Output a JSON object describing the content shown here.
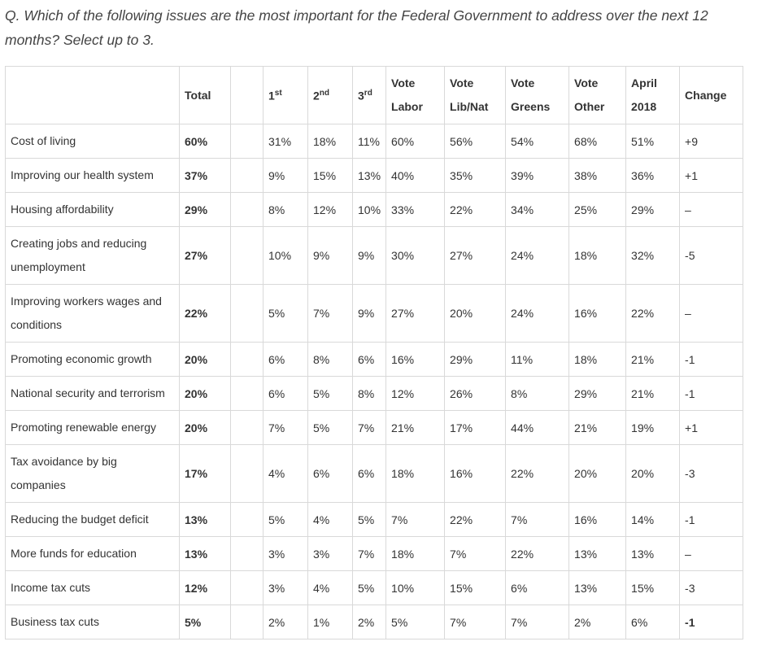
{
  "question": "Q. Which of the following issues are the most important for the Federal Government to address over the next 12 months? Select up to 3.",
  "headers": {
    "issue": "",
    "total": "Total",
    "first": {
      "num": "1",
      "suffix": "st"
    },
    "second": {
      "num": "2",
      "suffix": "nd"
    },
    "third": {
      "num": "3",
      "suffix": "rd"
    },
    "vote_labor": {
      "line1": "Vote",
      "line2": "Labor"
    },
    "vote_libnat": {
      "line1": "Vote",
      "line2": "Lib/Nat"
    },
    "vote_greens": {
      "line1": "Vote",
      "line2": "Greens"
    },
    "vote_other": {
      "line1": "Vote",
      "line2": "Other"
    },
    "april_2018": {
      "line1": "April",
      "line2": "2018"
    },
    "change": "Change"
  },
  "rows": [
    {
      "issue": "Cost of living",
      "total": "60%",
      "first": "31%",
      "second": "18%",
      "third": "11%",
      "labor": "60%",
      "libnat": "56%",
      "greens": "54%",
      "other": "68%",
      "april": "51%",
      "change": "+9"
    },
    {
      "issue": "Improving our health system",
      "total": "37%",
      "first": "9%",
      "second": "15%",
      "third": "13%",
      "labor": "40%",
      "libnat": "35%",
      "greens": "39%",
      "other": "38%",
      "april": "36%",
      "change": "+1"
    },
    {
      "issue": "Housing affordability",
      "total": "29%",
      "first": "8%",
      "second": "12%",
      "third": "10%",
      "labor": "33%",
      "libnat": "22%",
      "greens": "34%",
      "other": "25%",
      "april": "29%",
      "change": "–"
    },
    {
      "issue": "Creating jobs and reducing unemployment",
      "total": "27%",
      "first": "10%",
      "second": "9%",
      "third": "9%",
      "labor": "30%",
      "libnat": "27%",
      "greens": "24%",
      "other": "18%",
      "april": "32%",
      "change": "-5"
    },
    {
      "issue": "Improving workers wages and conditions",
      "total": "22%",
      "first": "5%",
      "second": "7%",
      "third": "9%",
      "labor": "27%",
      "libnat": "20%",
      "greens": "24%",
      "other": "16%",
      "april": "22%",
      "change": "–"
    },
    {
      "issue": "Promoting economic growth",
      "total": "20%",
      "first": "6%",
      "second": "8%",
      "third": "6%",
      "labor": "16%",
      "libnat": "29%",
      "greens": "11%",
      "other": "18%",
      "april": "21%",
      "change": "-1"
    },
    {
      "issue": "National security and terrorism",
      "total": "20%",
      "first": "6%",
      "second": "5%",
      "third": "8%",
      "labor": "12%",
      "libnat": "26%",
      "greens": "8%",
      "other": "29%",
      "april": "21%",
      "change": "-1"
    },
    {
      "issue": "Promoting renewable energy",
      "total": "20%",
      "first": "7%",
      "second": "5%",
      "third": "7%",
      "labor": "21%",
      "libnat": "17%",
      "greens": "44%",
      "other": "21%",
      "april": "19%",
      "change": "+1"
    },
    {
      "issue": "Tax avoidance by big companies",
      "total": "17%",
      "first": "4%",
      "second": "6%",
      "third": "6%",
      "labor": "18%",
      "libnat": "16%",
      "greens": "22%",
      "other": "20%",
      "april": "20%",
      "change": "-3"
    },
    {
      "issue": "Reducing the budget deficit",
      "total": "13%",
      "first": "5%",
      "second": "4%",
      "third": "5%",
      "labor": "7%",
      "libnat": "22%",
      "greens": "7%",
      "other": "16%",
      "april": "14%",
      "change": "-1"
    },
    {
      "issue": "More funds for education",
      "total": "13%",
      "first": "3%",
      "second": "3%",
      "third": "7%",
      "labor": "18%",
      "libnat": "7%",
      "greens": "22%",
      "other": "13%",
      "april": "13%",
      "change": "–"
    },
    {
      "issue": "Income tax cuts",
      "total": "12%",
      "first": "3%",
      "second": "4%",
      "third": "5%",
      "labor": "10%",
      "libnat": "15%",
      "greens": "6%",
      "other": "13%",
      "april": "15%",
      "change": "-3"
    },
    {
      "issue": "Business tax cuts",
      "total": "5%",
      "first": "2%",
      "second": "1%",
      "third": "2%",
      "labor": "5%",
      "libnat": "7%",
      "greens": "7%",
      "other": "2%",
      "april": "6%",
      "change": "-1"
    }
  ]
}
